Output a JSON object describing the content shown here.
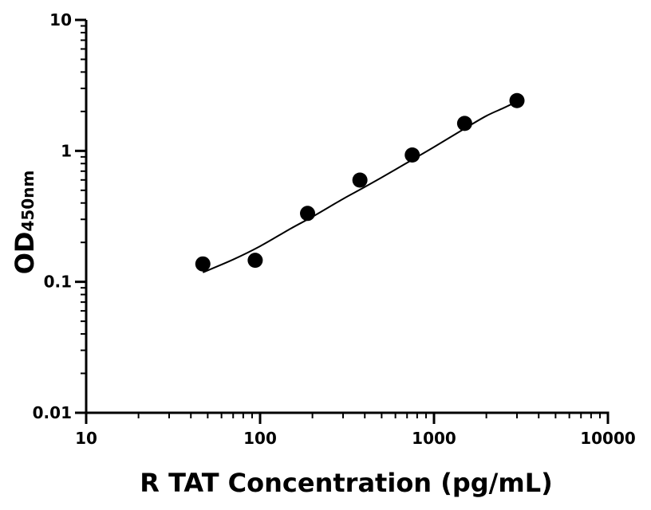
{
  "chart_data": {
    "type": "scatter",
    "title": "",
    "xlabel": "R TAT Concentration (pg/mL)",
    "ylabel": "OD",
    "ylabel_subscript": "450nm",
    "x_scale": "log",
    "y_scale": "log",
    "xlim": [
      10,
      10000
    ],
    "ylim": [
      0.01,
      10
    ],
    "x_ticks": [
      10,
      100,
      1000,
      10000
    ],
    "x_tick_labels": [
      "10",
      "100",
      "1000",
      "10000"
    ],
    "y_ticks": [
      0.01,
      0.1,
      1,
      10
    ],
    "y_tick_labels": [
      "0.01",
      "0.1",
      "1",
      "10"
    ],
    "grid": false,
    "legend": "none",
    "series": [
      {
        "kind": "points",
        "x": [
          46.875,
          93.75,
          187.5,
          375,
          750,
          1500,
          3000
        ],
        "y": [
          0.137,
          0.146,
          0.333,
          0.598,
          0.93,
          1.62,
          2.42
        ]
      },
      {
        "kind": "fit-curve",
        "x": [
          46.875,
          70,
          100,
          150,
          200,
          300,
          400,
          600,
          800,
          1000,
          1500,
          2000,
          2500,
          3000
        ],
        "y": [
          0.118,
          0.148,
          0.187,
          0.255,
          0.314,
          0.43,
          0.53,
          0.72,
          0.9,
          1.07,
          1.48,
          1.85,
          2.12,
          2.38
        ]
      }
    ],
    "colors": {
      "points": "#000000",
      "curve": "#000000",
      "axes": "#000000"
    }
  }
}
